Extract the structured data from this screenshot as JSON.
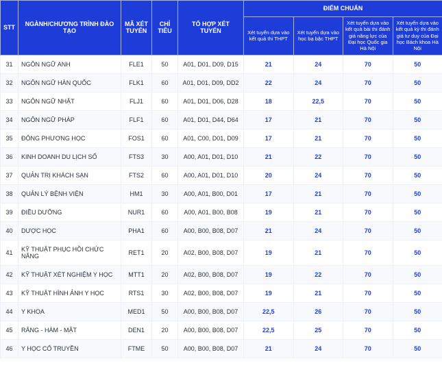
{
  "header": {
    "stt": "STT",
    "program": "NGÀNH/CHƯƠNG TRÌNH ĐÀO TẠO",
    "code": "MÃ XÉT TUYỂN",
    "quota": "CHỈ TIÊU",
    "combo": "TỔ HỢP XÉT TUYỂN",
    "score_group": "ĐIỂM CHUẨN",
    "score1": "Xét tuyển dựa vào kết quả thi THPT",
    "score2": "Xét tuyển dựa vào học bạ bậc THPT",
    "score3": "Xét tuyển dựa vào kết quả bài thi đánh giá năng lực của Đại học Quốc gia Hà Nội",
    "score4": "Xét tuyển dựa vào kết quả kỳ thi đánh giá tư duy của Đại học Bách khoa Hà Nội"
  },
  "colors": {
    "header_bg": "#1e3dd8",
    "header_fg": "#ffffff",
    "score_fg": "#1e3dd8",
    "row_alt_bg": "#f7f9fc",
    "border": "#eef2f8"
  },
  "rows": [
    {
      "stt": "31",
      "name": "NGÔN NGỮ ANH",
      "code": "FLE1",
      "quota": "50",
      "combo": "A01, D01, D09, D15",
      "s1": "21",
      "s2": "24",
      "s3": "70",
      "s4": "50"
    },
    {
      "stt": "32",
      "name": "NGÔN NGỮ HÀN QUỐC",
      "code": "FLK1",
      "quota": "60",
      "combo": "A01, D01, D09, DD2",
      "s1": "22",
      "s2": "24",
      "s3": "70",
      "s4": "50"
    },
    {
      "stt": "33",
      "name": "NGÔN NGỮ NHẬT",
      "code": "FLJ1",
      "quota": "60",
      "combo": "A01, D01, D06, D28",
      "s1": "18",
      "s2": "22,5",
      "s3": "70",
      "s4": "50"
    },
    {
      "stt": "34",
      "name": "NGÔN NGỮ PHÁP",
      "code": "FLF1",
      "quota": "60",
      "combo": "A01, D01, D44, D64",
      "s1": "17",
      "s2": "21",
      "s3": "70",
      "s4": "50"
    },
    {
      "stt": "35",
      "name": "ĐÔNG PHƯƠNG HỌC",
      "code": "FOS1",
      "quota": "60",
      "combo": "A01, C00, D01, D09",
      "s1": "17",
      "s2": "21",
      "s3": "70",
      "s4": "50"
    },
    {
      "stt": "36",
      "name": "KINH DOANH DU LỊCH SỐ",
      "code": "FTS3",
      "quota": "30",
      "combo": "A00, A01, D01, D10",
      "s1": "21",
      "s2": "22",
      "s3": "70",
      "s4": "50"
    },
    {
      "stt": "37",
      "name": "QUẢN TRỊ KHÁCH SẠN",
      "code": "FTS2",
      "quota": "60",
      "combo": "A00, A01, D01, D10",
      "s1": "20",
      "s2": "24",
      "s3": "70",
      "s4": "50"
    },
    {
      "stt": "38",
      "name": "QUẢN LÝ BỆNH VIỆN",
      "code": "HM1",
      "quota": "30",
      "combo": "A00, A01, B00, D01",
      "s1": "17",
      "s2": "21",
      "s3": "70",
      "s4": "50"
    },
    {
      "stt": "39",
      "name": "ĐIỀU DƯỠNG",
      "code": "NUR1",
      "quota": "60",
      "combo": "A00, A01, B00, B08",
      "s1": "19",
      "s2": "21",
      "s3": "70",
      "s4": "50"
    },
    {
      "stt": "40",
      "name": "DƯỢC HỌC",
      "code": "PHA1",
      "quota": "60",
      "combo": "A00, B00, B08, D07",
      "s1": "21",
      "s2": "24",
      "s3": "70",
      "s4": "50"
    },
    {
      "stt": "41",
      "name": "KỸ THUẬT PHỤC HỒI CHỨC NĂNG",
      "code": "RET1",
      "quota": "20",
      "combo": "A02, B00, B08, D07",
      "s1": "19",
      "s2": "21",
      "s3": "70",
      "s4": "50"
    },
    {
      "stt": "42",
      "name": "KỸ THUẬT XÉT NGHIỆM Y HỌC",
      "code": "MTT1",
      "quota": "20",
      "combo": "A02, B00, B08, D07",
      "s1": "19",
      "s2": "22",
      "s3": "70",
      "s4": "50"
    },
    {
      "stt": "43",
      "name": "KỸ THUẬT HÌNH ẢNH Y HỌC",
      "code": "RTS1",
      "quota": "30",
      "combo": "A02, B00, B08, D07",
      "s1": "19",
      "s2": "21",
      "s3": "70",
      "s4": "50"
    },
    {
      "stt": "44",
      "name": "Y KHOA",
      "code": "MED1",
      "quota": "50",
      "combo": "A00, B00, B08, D07",
      "s1": "22,5",
      "s2": "26",
      "s3": "70",
      "s4": "50"
    },
    {
      "stt": "45",
      "name": "RĂNG - HÀM - MẶT",
      "code": "DEN1",
      "quota": "20",
      "combo": "A00, B00, B08, D07",
      "s1": "22,5",
      "s2": "25",
      "s3": "70",
      "s4": "50"
    },
    {
      "stt": "46",
      "name": "Y HỌC CỔ TRUYỀN",
      "code": "FTME",
      "quota": "50",
      "combo": "A00, B00, B08, D07",
      "s1": "21",
      "s2": "24",
      "s3": "70",
      "s4": "50"
    }
  ]
}
